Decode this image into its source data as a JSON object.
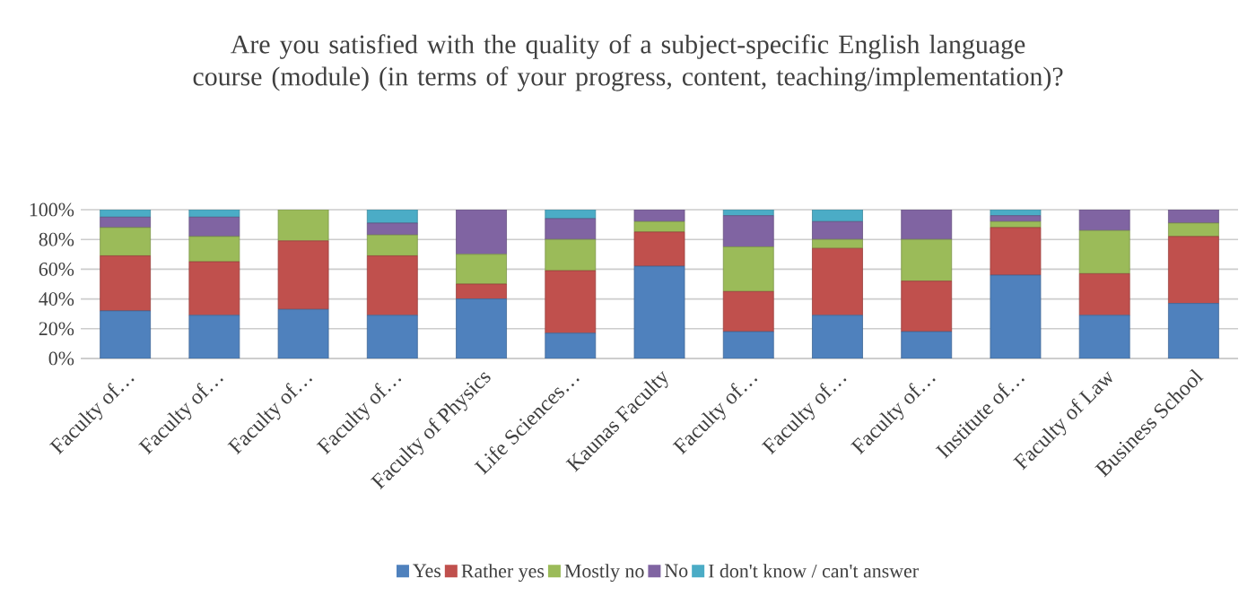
{
  "chart_data": {
    "type": "bar",
    "stacked": true,
    "title": "Are you satisfied with the quality of a subject-specific English language course (module) (in terms of your progress, content, teaching/implementation)?",
    "categories": [
      "Faculty of…",
      "Faculty of…",
      "Faculty of…",
      "Faculty of…",
      "Faculty of Physics",
      "Life Sciences…",
      "Kaunas Faculty",
      "Faculty of…",
      "Faculty of…",
      "Faculty of…",
      "Institute of…",
      "Faculty of Law",
      "Business School"
    ],
    "series": [
      {
        "name": "Yes",
        "color": "#4f81bd",
        "values": [
          32,
          29,
          33,
          29,
          40,
          17,
          62,
          18,
          29,
          18,
          56,
          29,
          37
        ]
      },
      {
        "name": "Rather yes",
        "color": "#c0504d",
        "values": [
          37,
          36,
          46,
          40,
          10,
          42,
          23,
          27,
          45,
          34,
          32,
          28,
          45
        ]
      },
      {
        "name": "Mostly no",
        "color": "#9bbb59",
        "values": [
          19,
          17,
          21,
          14,
          20,
          21,
          7,
          30,
          6,
          28,
          4,
          29,
          9
        ]
      },
      {
        "name": "No",
        "color": "#8064a2",
        "values": [
          7,
          13,
          0,
          8,
          30,
          14,
          8,
          21,
          12,
          20,
          4,
          14,
          9
        ]
      },
      {
        "name": "I don't know / can't answer",
        "color": "#4bacc6",
        "values": [
          5,
          5,
          0,
          9,
          0,
          6,
          0,
          4,
          8,
          0,
          4,
          0,
          0
        ]
      }
    ],
    "ylim": [
      0,
      100
    ],
    "yticks": [
      {
        "value": 0,
        "label": "0%"
      },
      {
        "value": 20,
        "label": "20%"
      },
      {
        "value": 40,
        "label": "40%"
      },
      {
        "value": 60,
        "label": "60%"
      },
      {
        "value": 80,
        "label": "80%"
      },
      {
        "value": 100,
        "label": "100%"
      }
    ],
    "grid": "y",
    "legend": "bottom"
  }
}
